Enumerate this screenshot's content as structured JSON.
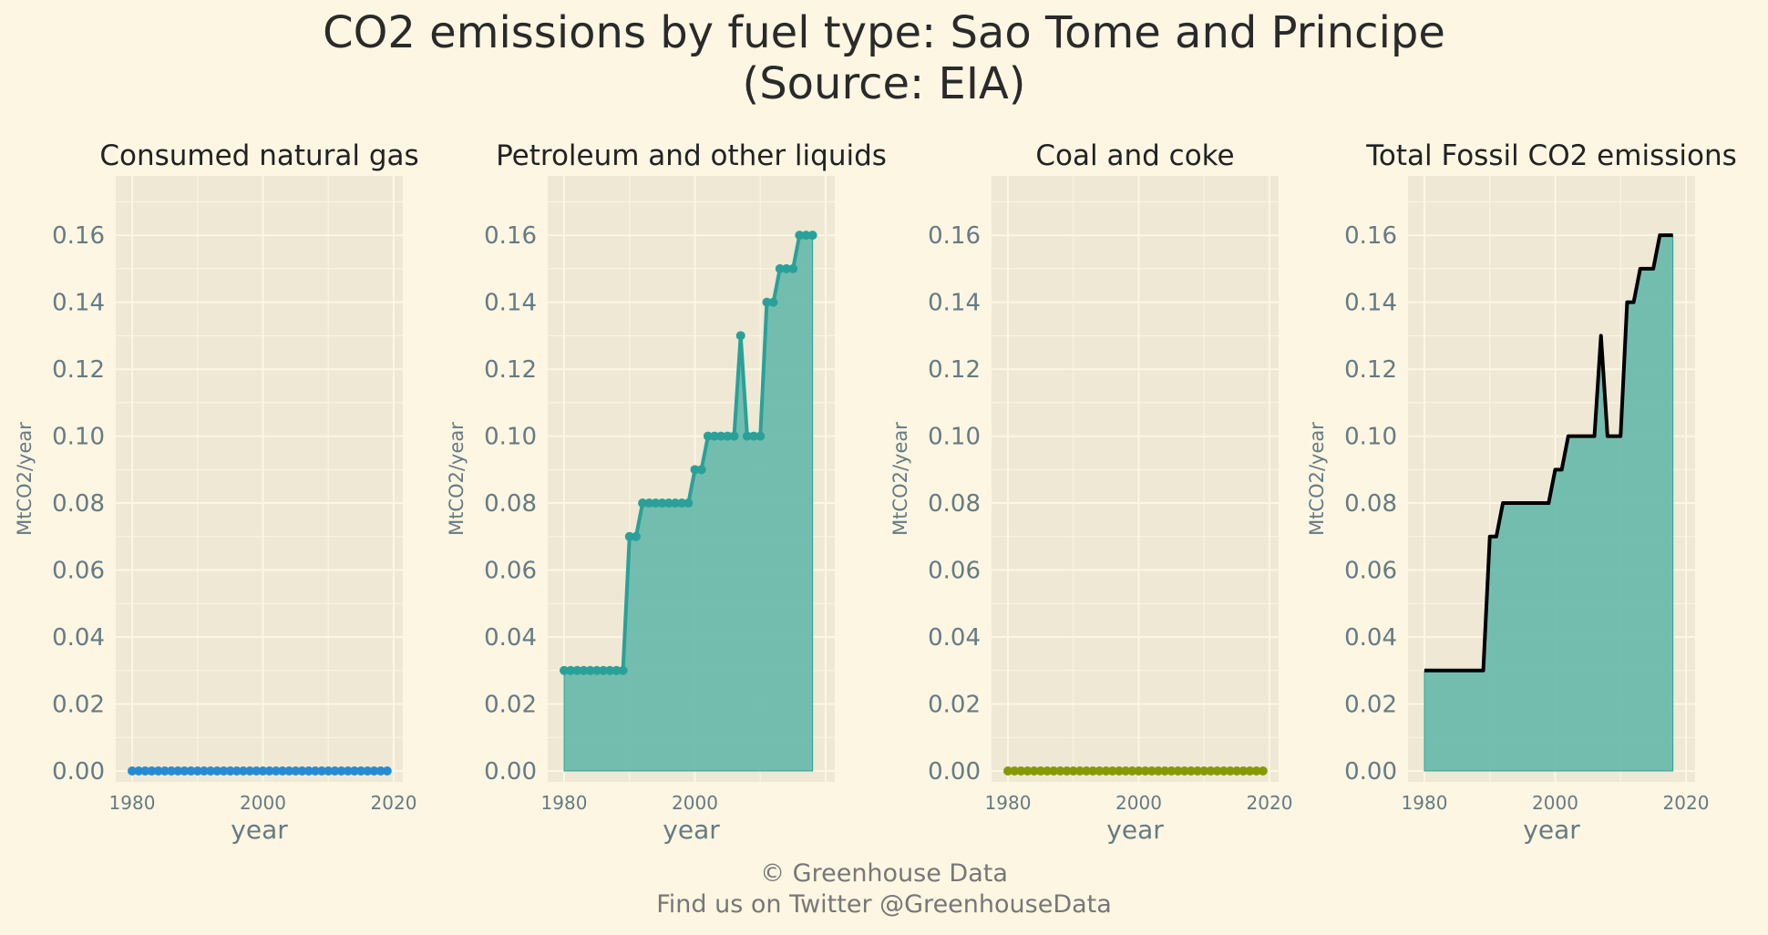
{
  "title": "CO2 emissions by fuel type: Sao Tome and Principe",
  "subtitle": "(Source: EIA)",
  "caption_line1": "© Greenhouse Data",
  "caption_line2": "Find us on Twitter @GreenhouseData",
  "colors": {
    "background": "#fdf6e3",
    "panel": "#eee8d5",
    "grid": "#fdf6e3",
    "text": "#657b83",
    "gas": "#268bd2",
    "petroleum": "#2aa198",
    "petroleum_fill": "#6cbaad",
    "coal": "#859900",
    "total_line": "#000000"
  },
  "chart_data": [
    {
      "type": "line",
      "title": "Consumed natural gas",
      "xlabel": "year",
      "ylabel": "MtCO2/year",
      "xlim": [
        1980,
        2019
      ],
      "ylim": [
        0,
        0.175
      ],
      "x_ticks": [
        1980,
        2000,
        2020
      ],
      "y_ticks": [
        "0.00",
        "0.02",
        "0.04",
        "0.06",
        "0.08",
        "0.10",
        "0.12",
        "0.14",
        "0.16"
      ],
      "grid": true,
      "area": false,
      "markers": true,
      "color": "gas",
      "x_start": 1980,
      "values": [
        0,
        0,
        0,
        0,
        0,
        0,
        0,
        0,
        0,
        0,
        0,
        0,
        0,
        0,
        0,
        0,
        0,
        0,
        0,
        0,
        0,
        0,
        0,
        0,
        0,
        0,
        0,
        0,
        0,
        0,
        0,
        0,
        0,
        0,
        0,
        0,
        0,
        0,
        0,
        0
      ]
    },
    {
      "type": "area",
      "title": "Petroleum and other liquids",
      "xlabel": "year",
      "ylabel": "MtCO2/year",
      "xlim": [
        1980,
        2018
      ],
      "ylim": [
        0,
        0.175
      ],
      "x_ticks": [
        1980,
        2000
      ],
      "y_ticks": [
        "0.00",
        "0.02",
        "0.04",
        "0.06",
        "0.08",
        "0.10",
        "0.12",
        "0.14",
        "0.16"
      ],
      "grid": true,
      "area": true,
      "markers": true,
      "color": "petroleum",
      "x_start": 1980,
      "values": [
        0.03,
        0.03,
        0.03,
        0.03,
        0.03,
        0.03,
        0.03,
        0.03,
        0.03,
        0.03,
        0.07,
        0.07,
        0.08,
        0.08,
        0.08,
        0.08,
        0.08,
        0.08,
        0.08,
        0.08,
        0.09,
        0.09,
        0.1,
        0.1,
        0.1,
        0.1,
        0.1,
        0.13,
        0.1,
        0.1,
        0.1,
        0.14,
        0.14,
        0.15,
        0.15,
        0.15,
        0.16,
        0.16,
        0.16
      ]
    },
    {
      "type": "line",
      "title": "Coal and coke",
      "xlabel": "year",
      "ylabel": "MtCO2/year",
      "xlim": [
        1980,
        2019
      ],
      "ylim": [
        0,
        0.175
      ],
      "x_ticks": [
        1980,
        2000,
        2020
      ],
      "y_ticks": [
        "0.00",
        "0.02",
        "0.04",
        "0.06",
        "0.08",
        "0.10",
        "0.12",
        "0.14",
        "0.16"
      ],
      "grid": true,
      "area": false,
      "markers": true,
      "color": "coal",
      "x_start": 1980,
      "values": [
        0,
        0,
        0,
        0,
        0,
        0,
        0,
        0,
        0,
        0,
        0,
        0,
        0,
        0,
        0,
        0,
        0,
        0,
        0,
        0,
        0,
        0,
        0,
        0,
        0,
        0,
        0,
        0,
        0,
        0,
        0,
        0,
        0,
        0,
        0,
        0,
        0,
        0,
        0,
        0
      ]
    },
    {
      "type": "area",
      "title": "Total Fossil CO2 emissions",
      "xlabel": "year",
      "ylabel": "MtCO2/year",
      "xlim": [
        1980,
        2018
      ],
      "ylim": [
        0,
        0.175
      ],
      "x_ticks": [
        1980,
        2000,
        2020
      ],
      "y_ticks": [
        "0.00",
        "0.02",
        "0.04",
        "0.06",
        "0.08",
        "0.10",
        "0.12",
        "0.14",
        "0.16"
      ],
      "grid": true,
      "area": true,
      "markers": false,
      "color": "total_line",
      "x_start": 1980,
      "values": [
        0.03,
        0.03,
        0.03,
        0.03,
        0.03,
        0.03,
        0.03,
        0.03,
        0.03,
        0.03,
        0.07,
        0.07,
        0.08,
        0.08,
        0.08,
        0.08,
        0.08,
        0.08,
        0.08,
        0.08,
        0.09,
        0.09,
        0.1,
        0.1,
        0.1,
        0.1,
        0.1,
        0.13,
        0.1,
        0.1,
        0.1,
        0.14,
        0.14,
        0.15,
        0.15,
        0.15,
        0.16,
        0.16,
        0.16
      ]
    }
  ]
}
